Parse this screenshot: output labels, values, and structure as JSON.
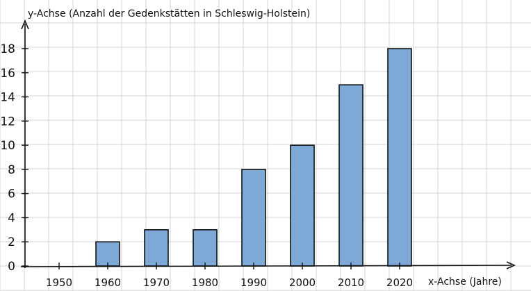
{
  "chart_data": {
    "type": "bar",
    "categories": [
      "1950",
      "1960",
      "1970",
      "1980",
      "1990",
      "2000",
      "2010",
      "2020"
    ],
    "values": [
      0,
      2,
      3,
      3,
      8,
      10,
      15,
      18
    ],
    "ylabel": "y-Achse (Anzahl der Gedenkstätten in Schleswig-Holstein)",
    "xlabel": "x-Achse (Jahre)",
    "ylim": [
      0,
      18
    ],
    "yticks": [
      0,
      2,
      4,
      6,
      8,
      10,
      12,
      14,
      16,
      18
    ],
    "grid": true,
    "legend": "none",
    "colors": {
      "bar": "#7ea8d6",
      "bar_stroke": "#111111",
      "grid": "#d4d4d4",
      "axis": "#111111"
    }
  }
}
